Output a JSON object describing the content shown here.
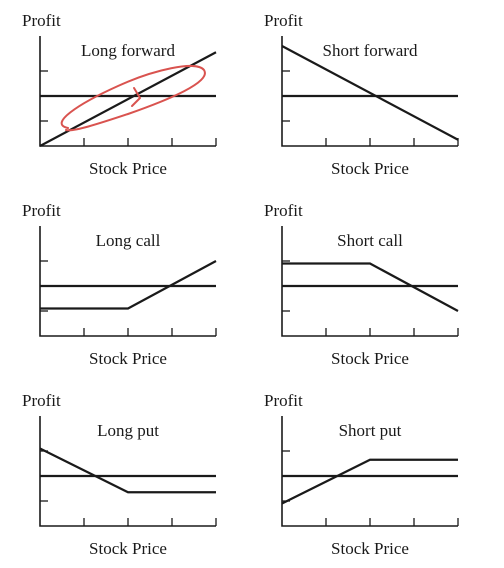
{
  "chart_data": [
    {
      "type": "line",
      "title": "Long forward",
      "ylabel": "Profit",
      "xlabel": "Stock Price",
      "xlim": [
        0,
        4
      ],
      "ylim": [
        -2,
        2
      ],
      "x_ticks": [
        1,
        2,
        3,
        4
      ],
      "y_ticks": [
        -1,
        0,
        1
      ],
      "zero_line": 0,
      "payoff": {
        "x": [
          0,
          4
        ],
        "y": [
          -2,
          1.75
        ]
      },
      "handwritten_annotation": true
    },
    {
      "type": "line",
      "title": "Short forward",
      "ylabel": "Profit",
      "xlabel": "Stock Price",
      "xlim": [
        0,
        4
      ],
      "ylim": [
        -2,
        2
      ],
      "x_ticks": [
        1,
        2,
        3,
        4
      ],
      "y_ticks": [
        -1,
        0,
        1
      ],
      "zero_line": 0,
      "payoff": {
        "x": [
          0,
          4
        ],
        "y": [
          2,
          -1.75
        ]
      }
    },
    {
      "type": "line",
      "title": "Long call",
      "ylabel": "Profit",
      "xlabel": "Stock Price",
      "xlim": [
        0,
        4
      ],
      "ylim": [
        -2,
        2
      ],
      "x_ticks": [
        1,
        2,
        3,
        4
      ],
      "y_ticks": [
        -1,
        0,
        1
      ],
      "zero_line": 0,
      "payoff": {
        "x": [
          0,
          2,
          4
        ],
        "y": [
          -0.9,
          -0.9,
          1
        ]
      }
    },
    {
      "type": "line",
      "title": "Short call",
      "ylabel": "Profit",
      "xlabel": "Stock Price",
      "xlim": [
        0,
        4
      ],
      "ylim": [
        -2,
        2
      ],
      "x_ticks": [
        1,
        2,
        3,
        4
      ],
      "y_ticks": [
        -1,
        0,
        1
      ],
      "zero_line": 0,
      "payoff": {
        "x": [
          0,
          2,
          4
        ],
        "y": [
          0.9,
          0.9,
          -1
        ]
      }
    },
    {
      "type": "line",
      "title": "Long put",
      "ylabel": "Profit",
      "xlabel": "Stock Price",
      "xlim": [
        0,
        4
      ],
      "ylim": [
        -2,
        2
      ],
      "x_ticks": [
        1,
        2,
        3,
        4
      ],
      "y_ticks": [
        -1,
        0,
        1
      ],
      "zero_line": 0,
      "payoff": {
        "x": [
          0,
          2,
          4
        ],
        "y": [
          1.1,
          -0.65,
          -0.65
        ]
      }
    },
    {
      "type": "line",
      "title": "Short put",
      "ylabel": "Profit",
      "xlabel": "Stock Price",
      "xlim": [
        0,
        4
      ],
      "ylim": [
        -2,
        2
      ],
      "x_ticks": [
        1,
        2,
        3,
        4
      ],
      "y_ticks": [
        -1,
        0,
        1
      ],
      "zero_line": 0,
      "payoff": {
        "x": [
          0,
          2,
          4
        ],
        "y": [
          -1.1,
          0.65,
          0.65
        ]
      }
    }
  ]
}
